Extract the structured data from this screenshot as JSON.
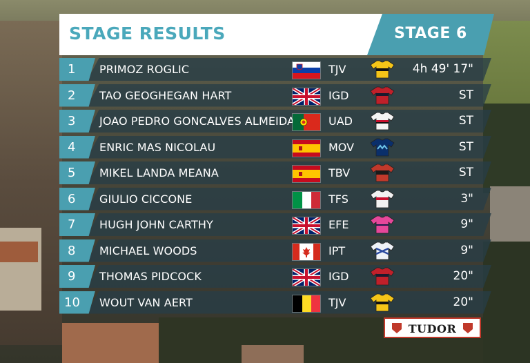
{
  "header": {
    "title": "STAGE RESULTS",
    "stage": "STAGE 6"
  },
  "results": [
    {
      "pos": "1",
      "name": "PRIMOZ ROGLIC",
      "flag": "slovenia-flag",
      "team": "TJV",
      "jersey": "jumbo-visma-jersey",
      "time": "4h 49' 17\""
    },
    {
      "pos": "2",
      "name": "TAO GEOGHEGAN HART",
      "flag": "uk-flag",
      "team": "IGD",
      "jersey": "ineos-jersey",
      "time": "ST"
    },
    {
      "pos": "3",
      "name": "JOAO PEDRO GONCALVES ALMEIDA",
      "flag": "portugal-flag",
      "team": "UAD",
      "jersey": "uae-jersey",
      "time": "ST"
    },
    {
      "pos": "4",
      "name": "ENRIC MAS NICOLAU",
      "flag": "spain-flag",
      "team": "MOV",
      "jersey": "movistar-jersey",
      "time": "ST"
    },
    {
      "pos": "5",
      "name": "MIKEL LANDA MEANA",
      "flag": "spain-flag",
      "team": "TBV",
      "jersey": "bahrain-jersey",
      "time": "ST"
    },
    {
      "pos": "6",
      "name": "GIULIO CICCONE",
      "flag": "italy-flag",
      "team": "TFS",
      "jersey": "trek-jersey",
      "time": "3\""
    },
    {
      "pos": "7",
      "name": "HUGH JOHN CARTHY",
      "flag": "uk-flag",
      "team": "EFE",
      "jersey": "ef-jersey",
      "time": "9\""
    },
    {
      "pos": "8",
      "name": "MICHAEL WOODS",
      "flag": "canada-flag",
      "team": "IPT",
      "jersey": "israel-jersey",
      "time": "9\""
    },
    {
      "pos": "9",
      "name": "THOMAS PIDCOCK",
      "flag": "uk-flag",
      "team": "IGD",
      "jersey": "ineos-jersey",
      "time": "20\""
    },
    {
      "pos": "10",
      "name": "WOUT VAN AERT",
      "flag": "belgium-flag",
      "team": "TJV",
      "jersey": "jumbo-visma-jersey",
      "time": "20\""
    }
  ],
  "sponsor": {
    "name": "TUDOR"
  },
  "colors": {
    "accent": "#4a9fb0",
    "row_bg": "#283e46",
    "title_bg": "#ffffff"
  }
}
